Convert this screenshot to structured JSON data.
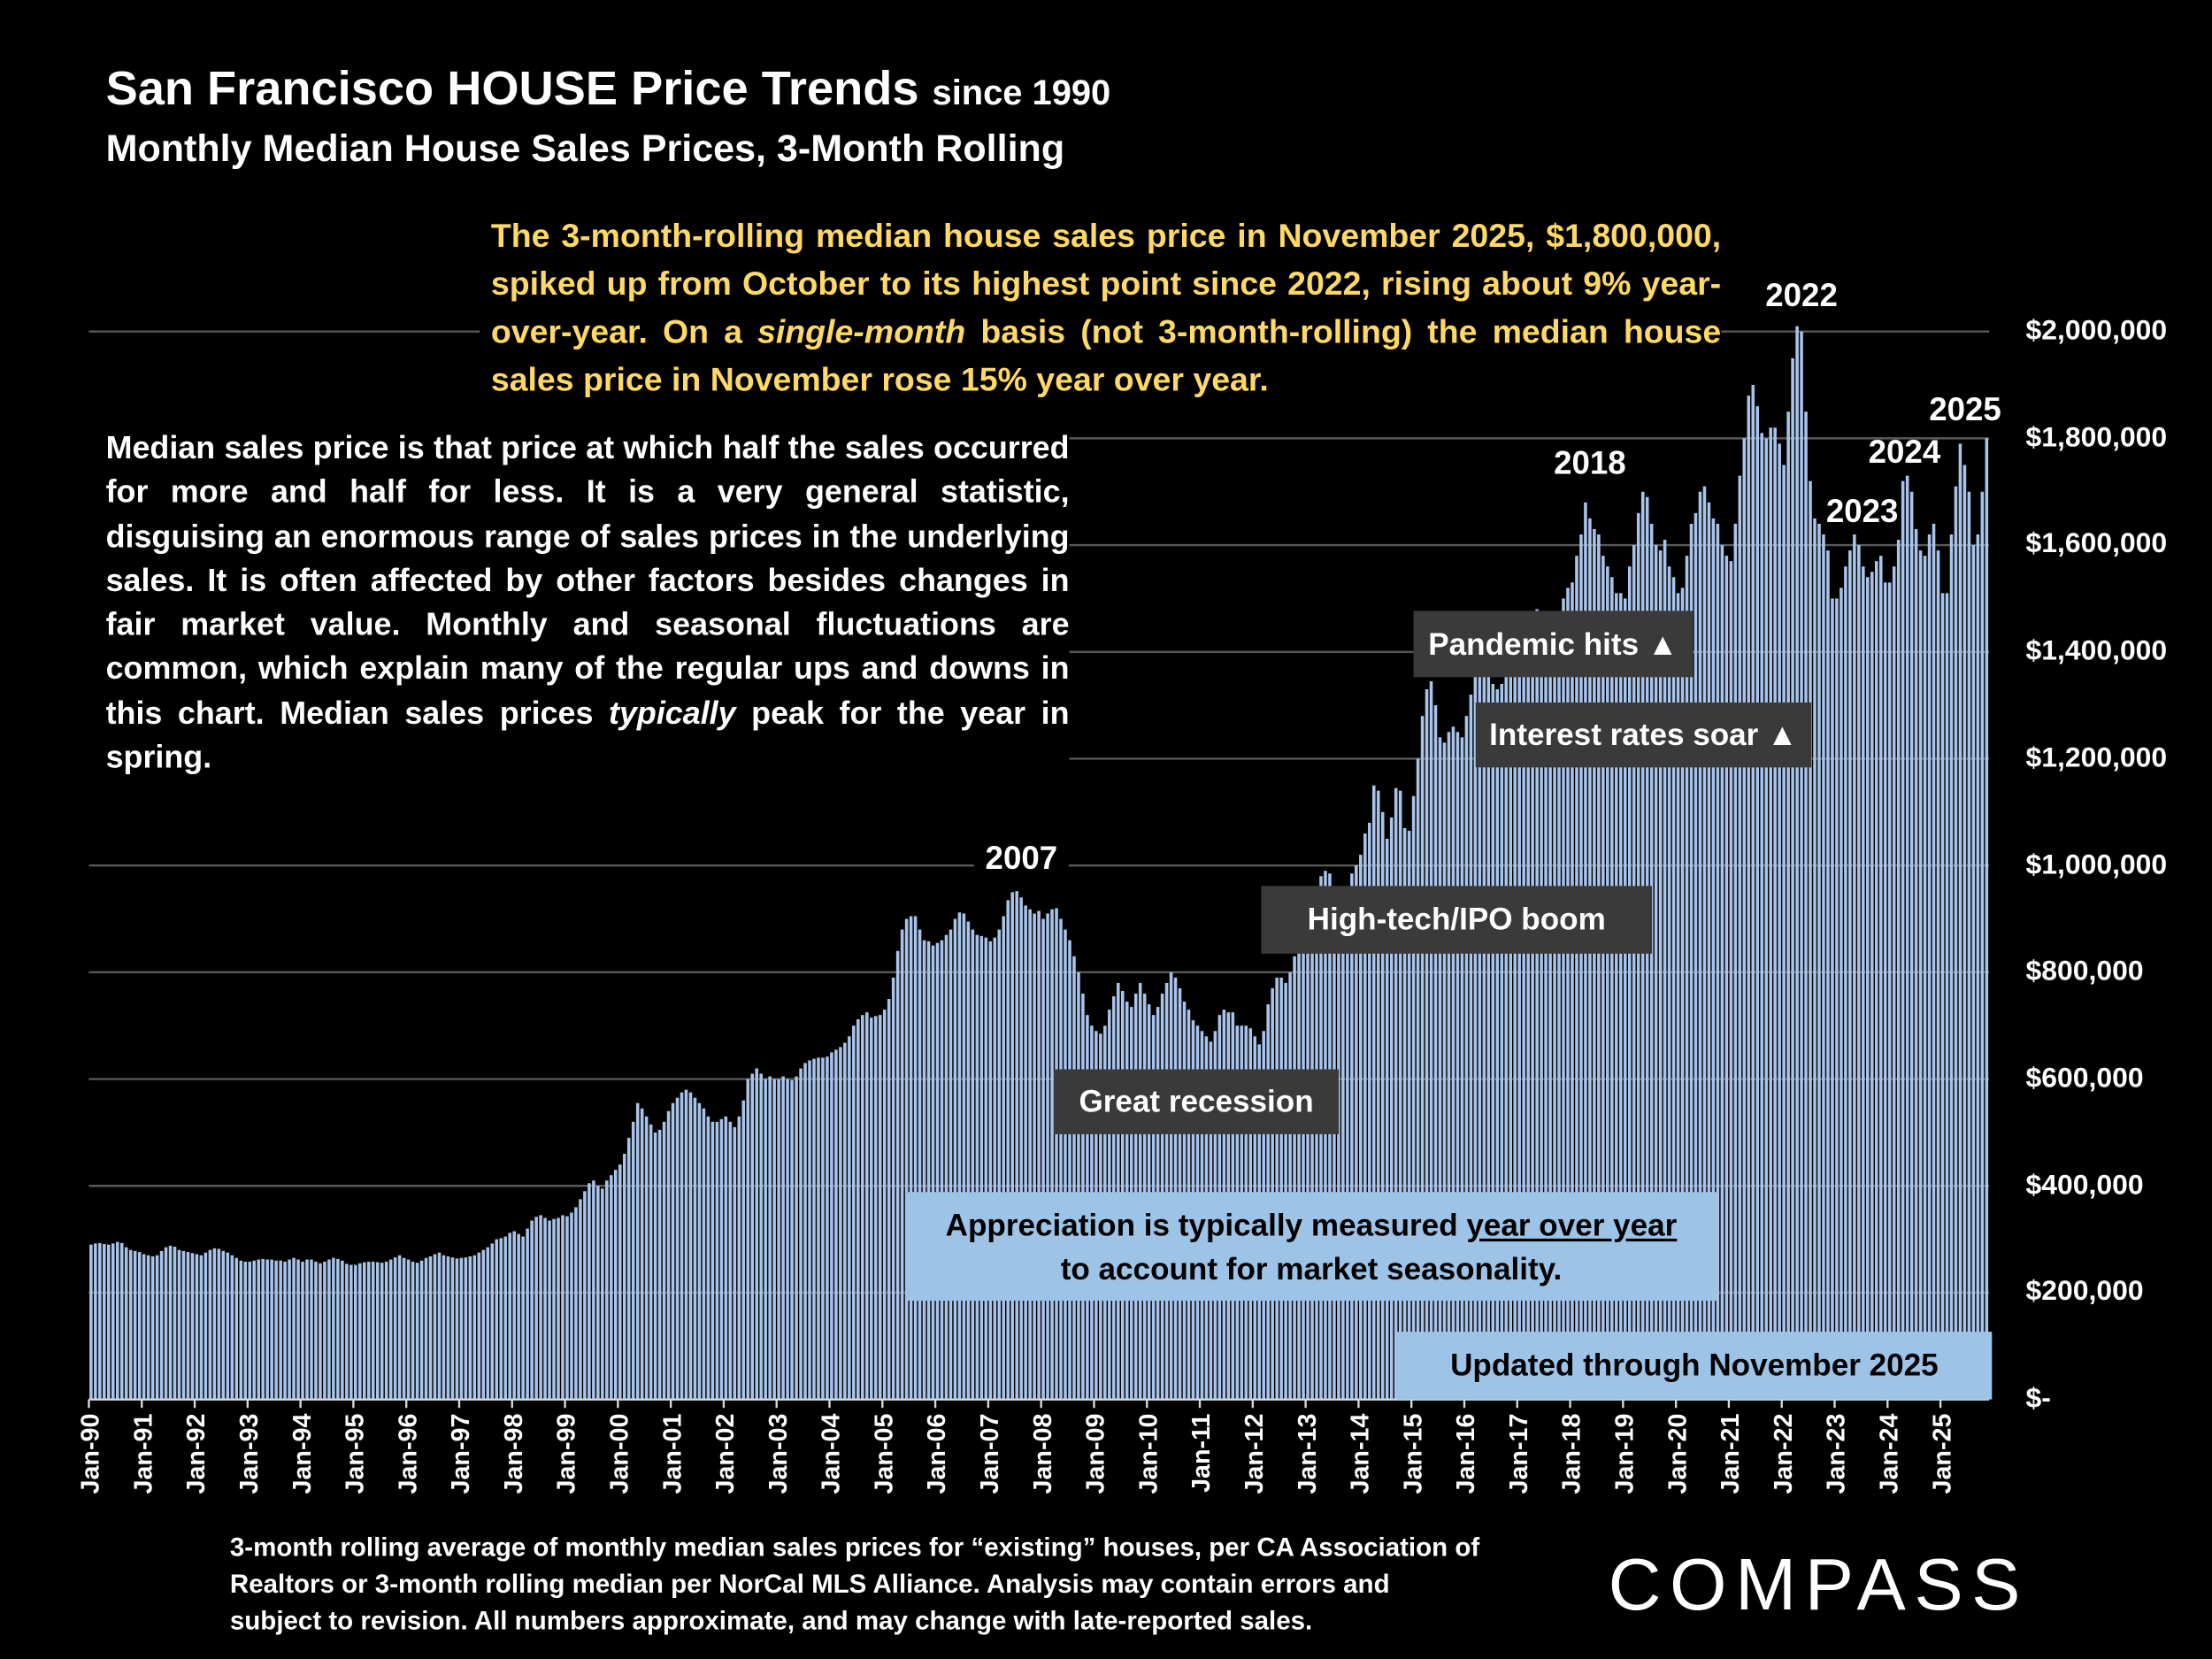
{
  "header": {
    "title": "San Francisco HOUSE Price Trends",
    "title_suffix": "since 1990",
    "subtitle": "Monthly Median House Sales Prices, 3-Month Rolling"
  },
  "summary": {
    "part1": "The 3-month-rolling median house sales price in November 2025, $1,800,000, spiked up from October to its highest point since 2022, rising about 9% year-over-year. On a ",
    "italic": "single-month",
    "part2": " basis (not 3-month-rolling) the median house sales price in November rose 15% year over year."
  },
  "explanation": {
    "part1": "Median sales price is that price at which half the sales occurred for more and half for less. It is a very general statistic, disguising an enormous range of sales prices in the underlying sales. It is often affected by other factors besides changes in fair market value. Monthly and seasonal fluctuations are common, which explain many of the regular ups and downs in this chart. Median sales prices ",
    "italic": "typically",
    "part2": " peak for the year in spring."
  },
  "annotations": {
    "pandemic": "Pandemic hits ▲",
    "rates": "Interest rates soar ▲",
    "hightech": "High-tech/IPO boom",
    "recession": "Great recession",
    "appreciation_line1_pre": "Appreciation is typically measured ",
    "appreciation_line1_underlined": "year over year",
    "appreciation_line2": "to account for market seasonality.",
    "updated": "Updated through November 2025"
  },
  "year_labels": {
    "y2007": "2007",
    "y2018": "2018",
    "y2022": "2022",
    "y2023": "2023",
    "y2024": "2024",
    "y2025": "2025"
  },
  "footnote": "3-month rolling average of monthly median sales prices for “existing” houses, per CA Association of Realtors or 3-month rolling median per NorCal MLS Alliance. Analysis may contain errors and subject to revision. All numbers approximate, and may change with late-reported sales.",
  "logo": "COMPASS",
  "colors": {
    "bar": "#a9c4eb",
    "summary_text": "#ffd966",
    "callout_box": "#9dc3e6",
    "annotation_box": "#3a3a3a",
    "gridline": "#595959"
  },
  "chart_data": {
    "type": "bar",
    "title": "San Francisco HOUSE Price Trends since 1990",
    "subtitle": "Monthly Median House Sales Prices, 3-Month Rolling",
    "xlabel": "",
    "ylabel": "",
    "ylim": [
      0,
      2000000
    ],
    "grid": true,
    "legend": "none",
    "y_tick_labels": [
      "$-",
      "$200,000",
      "$400,000",
      "$600,000",
      "$800,000",
      "$1,000,000",
      "$1,200,000",
      "$1,400,000",
      "$1,600,000",
      "$1,800,000",
      "$2,000,000"
    ],
    "y_tick_values": [
      0,
      200000,
      400000,
      600000,
      800000,
      1000000,
      1200000,
      1400000,
      1600000,
      1800000,
      2000000
    ],
    "x_tick_labels": [
      "Jan-90",
      "Jan-91",
      "Jan-92",
      "Jan-93",
      "Jan-94",
      "Jan-95",
      "Jan-96",
      "Jan-97",
      "Jan-98",
      "Jan-99",
      "Jan-00",
      "Jan-01",
      "Jan-02",
      "Jan-03",
      "Jan-04",
      "Jan-05",
      "Jan-06",
      "Jan-07",
      "Jan-08",
      "Jan-09",
      "Jan-10",
      "Jan-11",
      "Jan-12",
      "Jan-13",
      "Jan-14",
      "Jan-15",
      "Jan-16",
      "Jan-17",
      "Jan-18",
      "Jan-19",
      "Jan-20",
      "Jan-21",
      "Jan-22",
      "Jan-23",
      "Jan-24",
      "Jan-25"
    ],
    "period": "Jan-90 to Nov-25, monthly",
    "values": [
      290000,
      292000,
      293000,
      291000,
      290000,
      292000,
      295000,
      293000,
      285000,
      280000,
      278000,
      276000,
      272000,
      270000,
      268000,
      270000,
      278000,
      285000,
      288000,
      286000,
      280000,
      278000,
      276000,
      274000,
      272000,
      270000,
      275000,
      280000,
      283000,
      282000,
      278000,
      275000,
      270000,
      265000,
      260000,
      258000,
      258000,
      260000,
      262000,
      263000,
      262000,
      262000,
      260000,
      260000,
      258000,
      262000,
      265000,
      262000,
      258000,
      262000,
      262000,
      258000,
      255000,
      258000,
      262000,
      265000,
      263000,
      260000,
      254000,
      252000,
      252000,
      255000,
      257000,
      258000,
      258000,
      257000,
      256000,
      258000,
      262000,
      266000,
      270000,
      265000,
      262000,
      258000,
      256000,
      260000,
      265000,
      268000,
      272000,
      275000,
      270000,
      268000,
      266000,
      264000,
      265000,
      266000,
      268000,
      270000,
      275000,
      280000,
      285000,
      292000,
      300000,
      302000,
      305000,
      312000,
      315000,
      310000,
      305000,
      320000,
      335000,
      342000,
      345000,
      340000,
      335000,
      338000,
      340000,
      345000,
      343000,
      350000,
      360000,
      375000,
      390000,
      405000,
      410000,
      400000,
      395000,
      410000,
      420000,
      430000,
      440000,
      460000,
      490000,
      520000,
      555000,
      545000,
      530000,
      515000,
      500000,
      505000,
      520000,
      540000,
      555000,
      565000,
      575000,
      580000,
      575000,
      565000,
      555000,
      545000,
      530000,
      520000,
      520000,
      525000,
      530000,
      520000,
      510000,
      530000,
      560000,
      600000,
      610000,
      620000,
      610000,
      600000,
      605000,
      600000,
      600000,
      605000,
      600000,
      598000,
      605000,
      620000,
      630000,
      635000,
      638000,
      640000,
      640000,
      642000,
      650000,
      655000,
      660000,
      668000,
      680000,
      700000,
      712000,
      720000,
      725000,
      715000,
      718000,
      720000,
      730000,
      750000,
      790000,
      840000,
      880000,
      900000,
      905000,
      905000,
      880000,
      860000,
      858000,
      850000,
      855000,
      860000,
      870000,
      880000,
      900000,
      912000,
      910000,
      895000,
      880000,
      870000,
      868000,
      865000,
      858000,
      865000,
      880000,
      905000,
      935000,
      950000,
      952000,
      940000,
      925000,
      918000,
      910000,
      915000,
      900000,
      910000,
      918000,
      920000,
      900000,
      880000,
      860000,
      830000,
      800000,
      760000,
      720000,
      700000,
      690000,
      685000,
      700000,
      730000,
      755000,
      780000,
      765000,
      745000,
      735000,
      760000,
      780000,
      760000,
      740000,
      720000,
      735000,
      760000,
      780000,
      800000,
      790000,
      770000,
      745000,
      730000,
      710000,
      700000,
      690000,
      680000,
      670000,
      690000,
      720000,
      730000,
      725000,
      725000,
      700000,
      700000,
      700000,
      695000,
      680000,
      665000,
      690000,
      740000,
      770000,
      790000,
      790000,
      780000,
      800000,
      830000,
      850000,
      855000,
      870000,
      900000,
      950000,
      980000,
      990000,
      985000,
      960000,
      950000,
      945000,
      960000,
      985000,
      1000000,
      1020000,
      1060000,
      1080000,
      1150000,
      1140000,
      1100000,
      1050000,
      1090000,
      1145000,
      1140000,
      1070000,
      1065000,
      1130000,
      1200000,
      1280000,
      1330000,
      1345000,
      1300000,
      1240000,
      1230000,
      1250000,
      1260000,
      1250000,
      1240000,
      1280000,
      1320000,
      1360000,
      1380000,
      1390000,
      1370000,
      1340000,
      1330000,
      1340000,
      1360000,
      1380000,
      1370000,
      1360000,
      1380000,
      1420000,
      1460000,
      1480000,
      1470000,
      1440000,
      1420000,
      1430000,
      1470000,
      1500000,
      1520000,
      1530000,
      1580000,
      1620000,
      1680000,
      1650000,
      1630000,
      1620000,
      1580000,
      1560000,
      1540000,
      1510000,
      1510000,
      1500000,
      1560000,
      1600000,
      1660000,
      1700000,
      1690000,
      1640000,
      1600000,
      1590000,
      1610000,
      1560000,
      1540000,
      1510000,
      1520000,
      1580000,
      1640000,
      1660000,
      1700000,
      1710000,
      1680000,
      1650000,
      1640000,
      1600000,
      1580000,
      1570000,
      1640000,
      1730000,
      1800000,
      1880000,
      1900000,
      1860000,
      1810000,
      1800000,
      1820000,
      1820000,
      1790000,
      1750000,
      1850000,
      1950000,
      2010000,
      2000000,
      1850000,
      1720000,
      1650000,
      1640000,
      1620000,
      1590000,
      1500000,
      1500000,
      1520000,
      1560000,
      1590000,
      1620000,
      1600000,
      1560000,
      1540000,
      1550000,
      1570000,
      1580000,
      1530000,
      1530000,
      1560000,
      1610000,
      1720000,
      1730000,
      1700000,
      1630000,
      1590000,
      1580000,
      1620000,
      1640000,
      1590000,
      1510000,
      1510000,
      1620000,
      1710000,
      1790000,
      1750000,
      1700000,
      1600000,
      1620000,
      1700000,
      1800000
    ]
  }
}
